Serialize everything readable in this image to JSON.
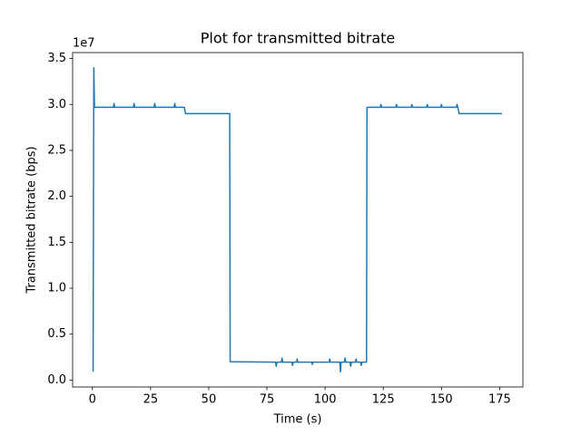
{
  "chart_data": {
    "type": "line",
    "title": "Plot for transmitted bitrate",
    "xlabel": "Time (s)",
    "ylabel": "Transmitted bitrate (bps)",
    "y_offset_label": "1e7",
    "color": "#1f77b4",
    "x": [
      0.3,
      0.6,
      0.9,
      1.2,
      9.0,
      9.3,
      9.6,
      17.6,
      17.9,
      18.2,
      26.5,
      26.8,
      27.1,
      35.1,
      35.4,
      35.7,
      39.5,
      40.0,
      59.0,
      59.2,
      78.7,
      79.0,
      79.3,
      81.2,
      81.5,
      81.8,
      85.7,
      86.0,
      86.3,
      87.7,
      88.0,
      88.3,
      94.2,
      94.5,
      94.8,
      101.7,
      102.0,
      102.3,
      106.3,
      106.6,
      106.9,
      108.3,
      108.6,
      108.9,
      110.7,
      111.0,
      111.3,
      113.0,
      113.3,
      113.6,
      115.2,
      115.5,
      115.8,
      117.8,
      118.0,
      123.7,
      124.0,
      124.3,
      130.4,
      130.7,
      131.0,
      137.0,
      137.3,
      137.6,
      143.6,
      143.9,
      144.2,
      149.7,
      150.0,
      150.3,
      156.4,
      156.7,
      157.0,
      157.6,
      176.0
    ],
    "values": [
      900000,
      34000000,
      29700000,
      29700000,
      29700000,
      30100000,
      29700000,
      29700000,
      30100000,
      29700000,
      29700000,
      30100000,
      29700000,
      29700000,
      30100000,
      29700000,
      29700000,
      29000000,
      29000000,
      2000000,
      1950000,
      1500000,
      1950000,
      1950000,
      2400000,
      1950000,
      1950000,
      1600000,
      1950000,
      1950000,
      2300000,
      1950000,
      1950000,
      1700000,
      1950000,
      1950000,
      2300000,
      1950000,
      1950000,
      900000,
      1950000,
      1950000,
      2400000,
      1950000,
      1950000,
      1500000,
      1950000,
      1950000,
      2300000,
      1950000,
      1950000,
      1600000,
      1950000,
      1950000,
      29700000,
      29700000,
      30000000,
      29700000,
      29700000,
      30000000,
      29700000,
      29700000,
      30000000,
      29700000,
      29700000,
      30000000,
      29700000,
      29700000,
      30000000,
      29700000,
      29700000,
      30000000,
      29700000,
      29000000,
      29000000
    ],
    "xlim": [
      -8.5,
      185
    ],
    "xticks": [
      0,
      25,
      50,
      75,
      100,
      125,
      150,
      175
    ],
    "ylim": [
      -750000,
      35650000
    ],
    "yticks": [
      {
        "value": 0,
        "label": "0.0"
      },
      {
        "value": 5000000,
        "label": "0.5"
      },
      {
        "value": 10000000,
        "label": "1.0"
      },
      {
        "value": 15000000,
        "label": "1.5"
      },
      {
        "value": 20000000,
        "label": "2.0"
      },
      {
        "value": 25000000,
        "label": "2.5"
      },
      {
        "value": 30000000,
        "label": "3.0"
      },
      {
        "value": 35000000,
        "label": "3.5"
      }
    ],
    "grid": false
  }
}
